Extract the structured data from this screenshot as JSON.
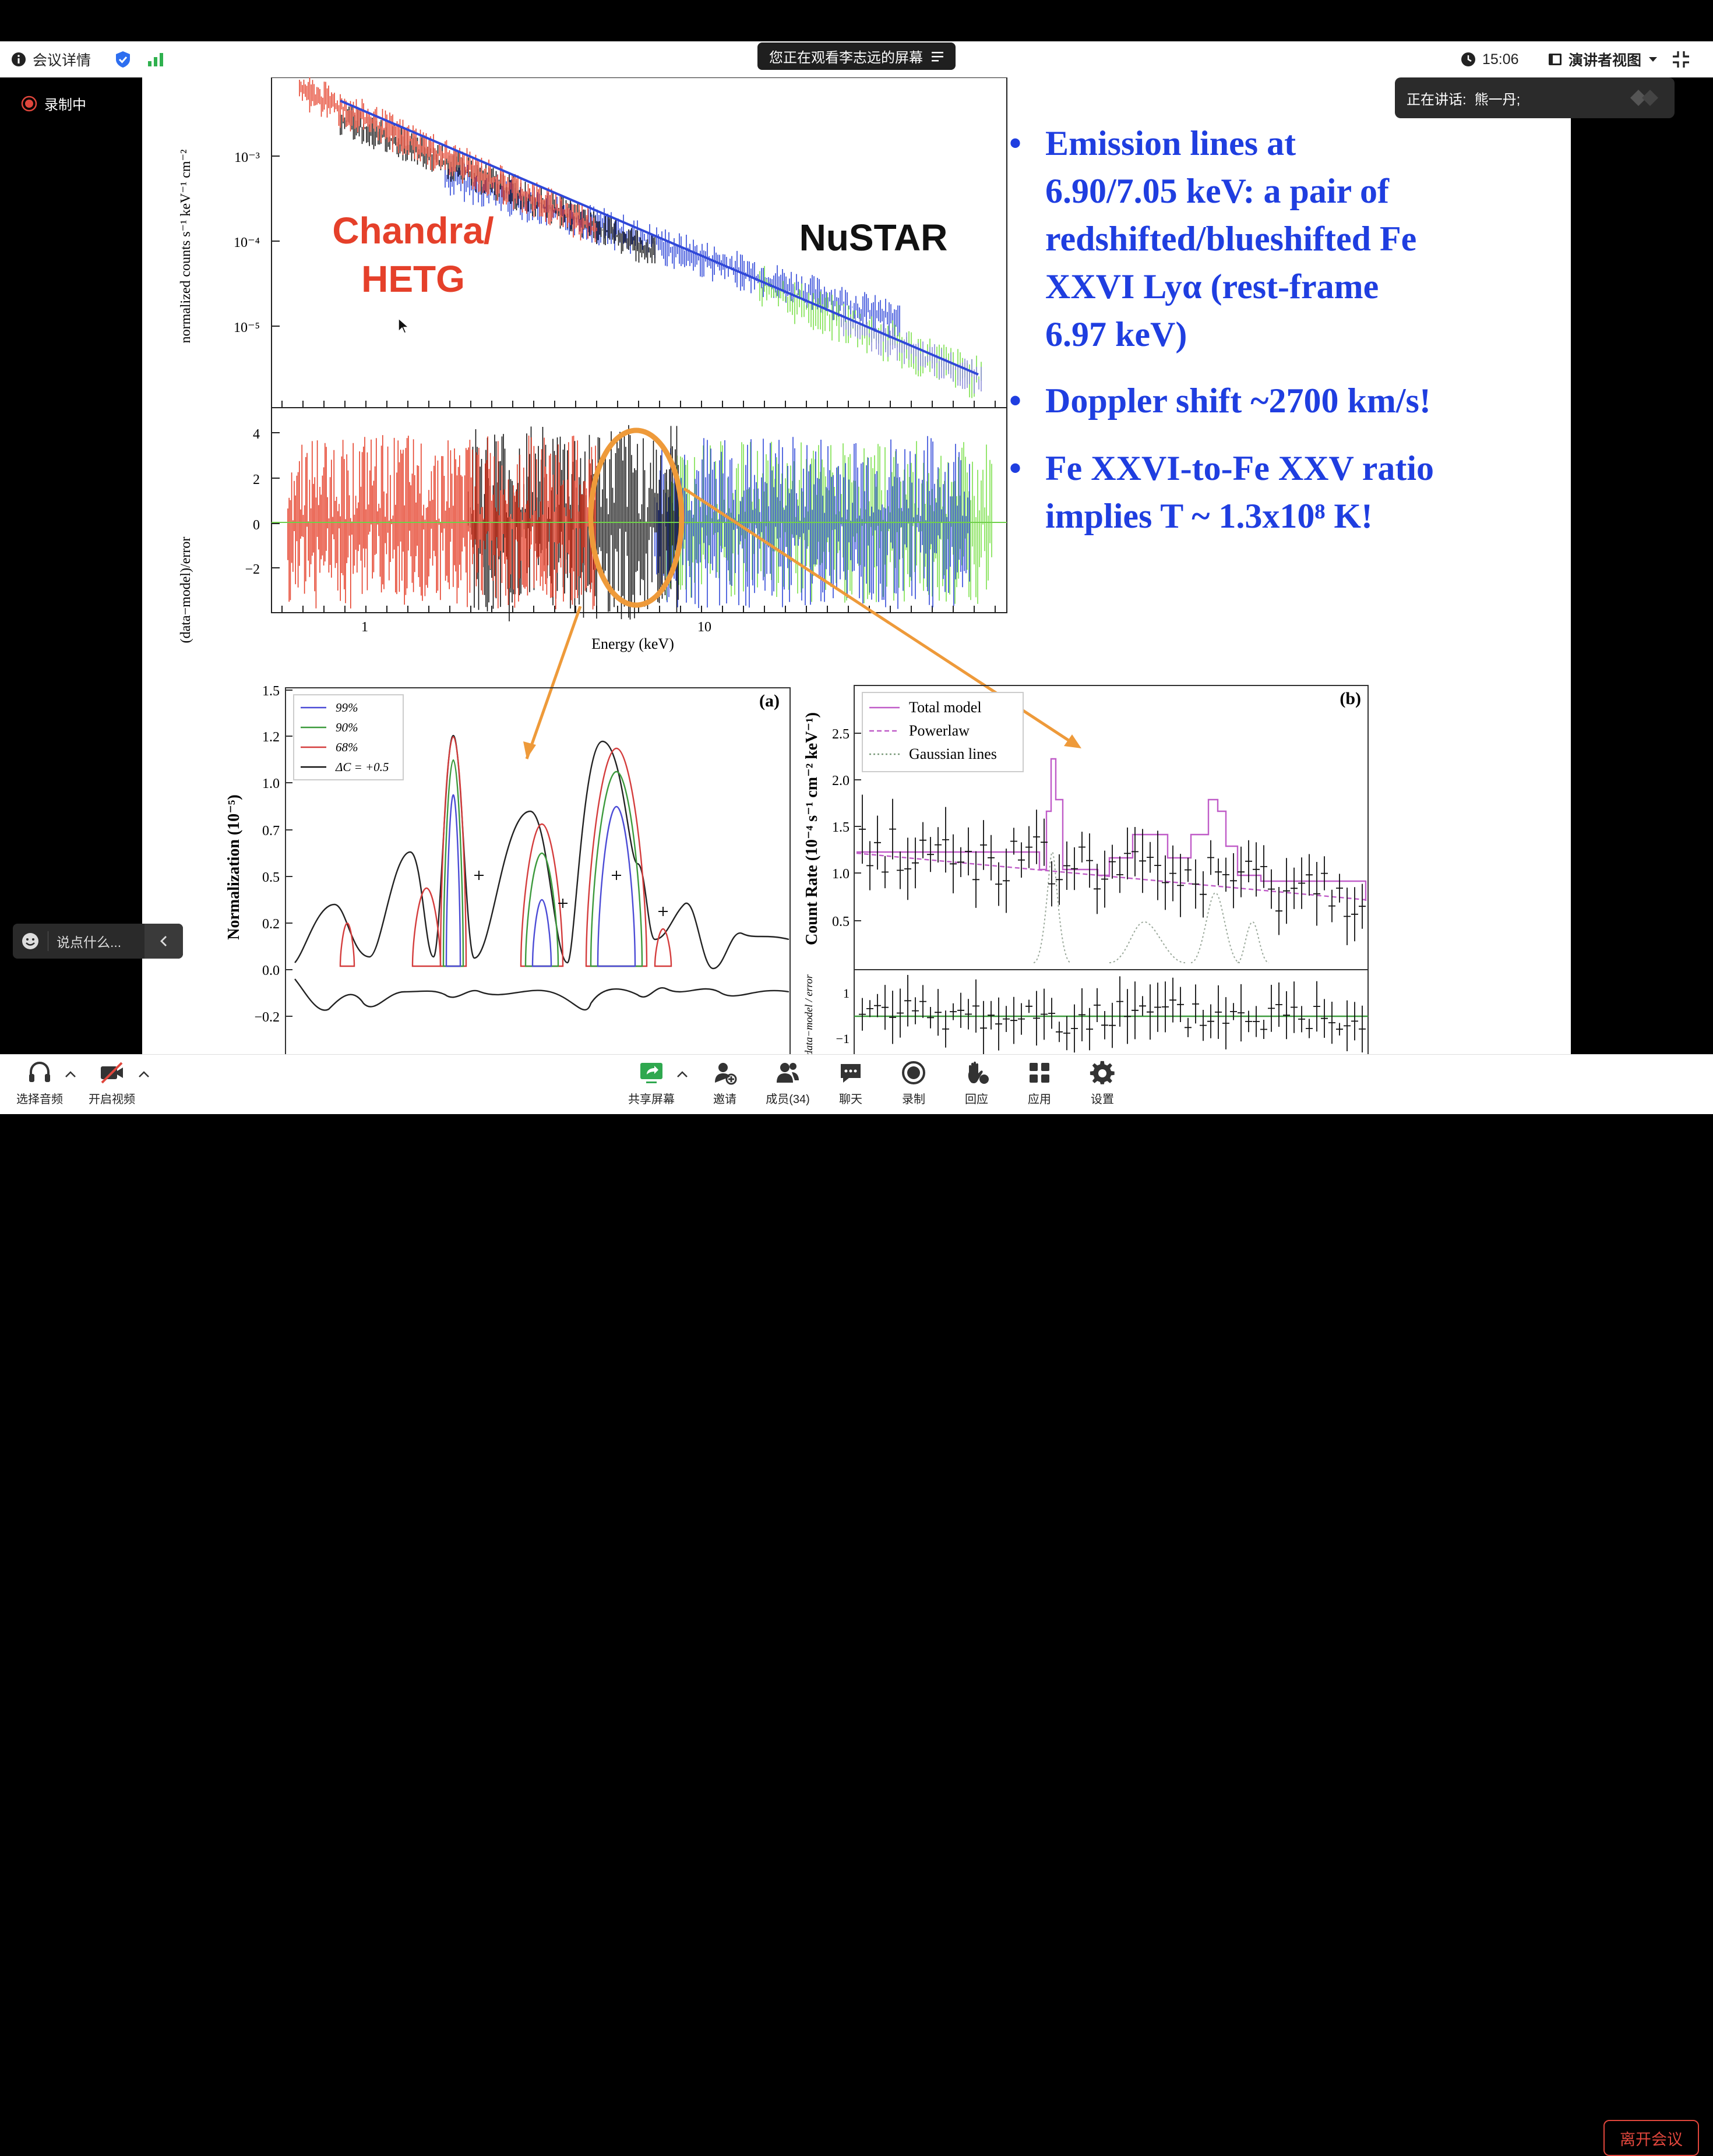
{
  "topbar": {
    "meeting_details": "会议详情",
    "share_banner": "您正在观看李志远的屏幕",
    "time": "15:06",
    "view_mode": "演讲者视图"
  },
  "speaker": {
    "label": "正在讲话:",
    "name": "熊一丹;"
  },
  "recording": {
    "label": "录制中"
  },
  "chat": {
    "placeholder": "说点什么..."
  },
  "slide": {
    "top_chart": {
      "ylabel_top": "normalized counts s⁻¹ keV⁻¹ cm⁻²",
      "ylabel_bottom": "(data−model)/error",
      "xlabel": "Energy (keV)",
      "y_ticks_top": [
        "10⁻³",
        "10⁻⁴",
        "10⁻⁵"
      ],
      "y_ticks_bottom": [
        "4",
        "2",
        "0",
        "−2"
      ],
      "x_ticks": [
        "1",
        "10"
      ],
      "label_chandra_1": "Chandra/",
      "label_chandra_2": "HETG",
      "label_nustar": "NuSTAR"
    },
    "bullets": [
      [
        "Emission lines at",
        "6.90/7.05 keV: a pair of",
        "redshifted/blueshifted Fe",
        "XXVI Lyα (rest-frame",
        "6.97 keV)"
      ],
      [
        "Doppler shift ~2700 km/s!"
      ],
      [
        "Fe XXVI-to-Fe XXV ratio",
        "implies T ~ 1.3x10⁸ K!"
      ]
    ],
    "panel_a": {
      "tag": "(a)",
      "ylabel": "Normalization (10⁻⁵)",
      "y_ticks": [
        "1.5",
        "1.2",
        "1.0",
        "0.7",
        "0.5",
        "0.2",
        "0.0",
        "−0.2"
      ],
      "legend": [
        "99%",
        "90%",
        "68%",
        "ΔC = +0.5"
      ],
      "legend_colors": [
        "#4b4bd6",
        "#3c9a3c",
        "#d43c3c",
        "#111111"
      ]
    },
    "panel_b": {
      "tag": "(b)",
      "ylabel": "Count Rate (10⁻⁴ s⁻¹ cm⁻² keV⁻¹)",
      "ylabel_resid": "data−model / error",
      "y_ticks": [
        "2.5",
        "2.0",
        "1.5",
        "1.0",
        "0.5"
      ],
      "resid_ticks": [
        "1",
        "−1"
      ],
      "legend": [
        "Total model",
        "Powerlaw",
        "Gaussian lines"
      ],
      "legend_colors": [
        "#c05cc8",
        "#c05cc8",
        "#7a9a7a"
      ]
    }
  },
  "bottombar": {
    "buttons": [
      "选择音频",
      "开启视频",
      "共享屏幕",
      "邀请",
      "成员(34)",
      "聊天",
      "录制",
      "回应",
      "应用",
      "设置"
    ],
    "leave": "离开会议"
  },
  "colors": {
    "accent_blue": "#1f3ee0",
    "chandra_red": "#e5402a",
    "annotation_orange": "#ee9a3a",
    "leave_red": "#e0463c"
  }
}
